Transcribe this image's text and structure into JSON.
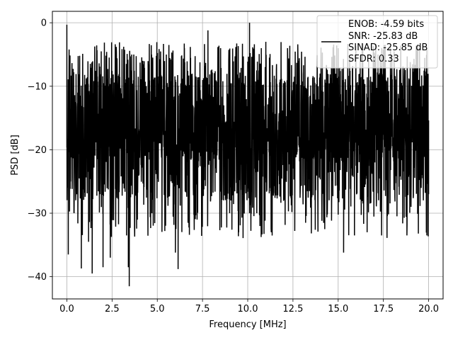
{
  "chart_data": {
    "type": "line",
    "title": "",
    "xlabel": "Frequency [MHz]",
    "ylabel": "PSD [dB]",
    "xlim": [
      -0.8,
      20.8
    ],
    "ylim": [
      -43.5,
      1.8
    ],
    "x_ticks": [
      0.0,
      2.5,
      5.0,
      7.5,
      10.0,
      12.5,
      15.0,
      17.5,
      20.0
    ],
    "x_tick_labels": [
      "0.0",
      "2.5",
      "5.0",
      "7.5",
      "10.0",
      "12.5",
      "15.0",
      "17.5",
      "20.0"
    ],
    "y_ticks": [
      0,
      -10,
      -20,
      -30,
      -40
    ],
    "y_tick_labels": [
      "0",
      "−10",
      "−20",
      "−30",
      "−40"
    ],
    "grid": true,
    "legend_position": "top-right",
    "line_color": "#000000",
    "x_range": [
      0.0,
      20.0
    ],
    "series": [
      {
        "name": "ENOB: -4.59 bits\nSNR: -25.83 dB\nSINAD: -25.85 dB\nSFDR: 0.33",
        "description_points": [
          [
            0.0,
            -0.3
          ],
          [
            0.08,
            -36.5
          ],
          [
            0.12,
            -8
          ],
          [
            0.2,
            -25
          ],
          [
            0.3,
            -12
          ],
          [
            0.4,
            -30
          ],
          [
            0.6,
            -11
          ],
          [
            0.8,
            -38.7
          ],
          [
            1.2,
            -34.5
          ],
          [
            1.4,
            -39.5
          ],
          [
            2.0,
            -38.5
          ],
          [
            2.4,
            -37
          ],
          [
            2.5,
            -10
          ],
          [
            3.3,
            -33.5
          ],
          [
            3.4,
            -38.5
          ],
          [
            3.45,
            -41.5
          ],
          [
            3.7,
            -5
          ],
          [
            4.2,
            -6
          ],
          [
            4.7,
            -30
          ],
          [
            5.5,
            -5
          ],
          [
            5.8,
            -4.7
          ],
          [
            6.0,
            -36.2
          ],
          [
            6.15,
            -38.8
          ],
          [
            6.5,
            -4
          ],
          [
            6.7,
            -31.5
          ],
          [
            7.2,
            -31
          ],
          [
            7.8,
            -1.2
          ],
          [
            8.5,
            -4
          ],
          [
            9.0,
            -30
          ],
          [
            9.5,
            -33
          ],
          [
            10.1,
            0.0
          ],
          [
            10.5,
            -30
          ],
          [
            11.0,
            -3
          ],
          [
            11.3,
            -33
          ],
          [
            12.2,
            -4
          ],
          [
            12.8,
            -6
          ],
          [
            13.2,
            -31.5
          ],
          [
            14.0,
            -8
          ],
          [
            14.5,
            -27
          ],
          [
            15.0,
            -4
          ],
          [
            15.3,
            -36.2
          ],
          [
            15.9,
            -33.5
          ],
          [
            16.6,
            -33
          ],
          [
            17.2,
            -5
          ],
          [
            18.1,
            -6.5
          ],
          [
            18.8,
            -33.5
          ],
          [
            19.5,
            -4
          ],
          [
            19.9,
            -33.5
          ],
          [
            20.0,
            -27
          ]
        ]
      }
    ],
    "legend_lines": [
      "ENOB: -4.59 bits",
      "SNR: -25.83 dB",
      "SINAD: -25.85 dB",
      "SFDR: 0.33"
    ]
  }
}
